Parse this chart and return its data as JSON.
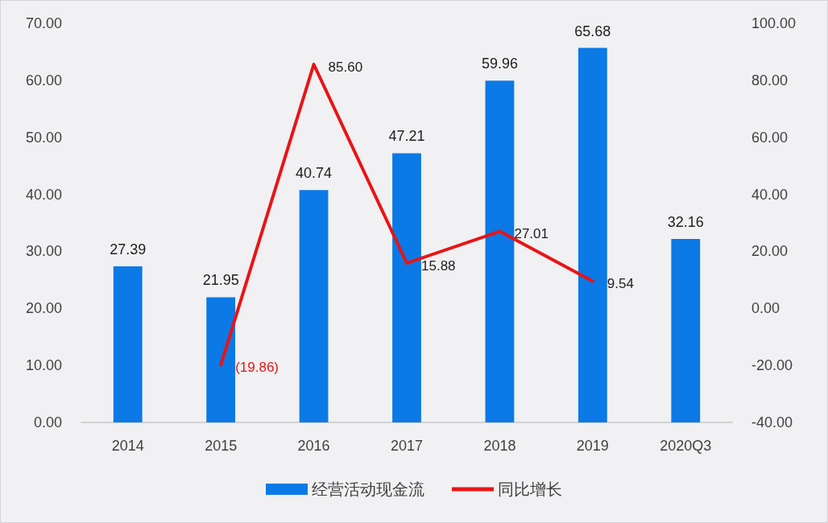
{
  "chart_data": {
    "type": "bar",
    "categories": [
      "2014",
      "2015",
      "2016",
      "2017",
      "2018",
      "2019",
      "2020Q3"
    ],
    "series": [
      {
        "name": "经营活动现金流",
        "color": "#0b79e6",
        "values": [
          27.39,
          21.95,
          40.74,
          47.21,
          59.96,
          65.68,
          32.16
        ],
        "value_labels": [
          "27.39",
          "21.95",
          "40.74",
          "47.21",
          "59.96",
          "65.68",
          "32.16"
        ]
      },
      {
        "name": "同比增长",
        "type": "line",
        "axis": "y2",
        "color": "#e81416",
        "values": [
          null,
          -19.86,
          85.6,
          15.88,
          27.01,
          9.54,
          null
        ],
        "value_labels": [
          null,
          "(19.86)",
          "85.60",
          "15.88",
          "27.01",
          "9.54",
          null
        ]
      }
    ],
    "ylim": [
      0,
      70
    ],
    "yticks": [
      {
        "value": 0,
        "label": "0.00"
      },
      {
        "value": 10,
        "label": "10.00"
      },
      {
        "value": 20,
        "label": "20.00"
      },
      {
        "value": 30,
        "label": "30.00"
      },
      {
        "value": 40,
        "label": "40.00"
      },
      {
        "value": 50,
        "label": "50.00"
      },
      {
        "value": 60,
        "label": "60.00"
      },
      {
        "value": 70,
        "label": "70.00"
      }
    ],
    "y2lim": [
      -40,
      100
    ],
    "y2ticks": [
      {
        "value": -40,
        "label": "-40.00"
      },
      {
        "value": -20,
        "label": "-20.00"
      },
      {
        "value": 0,
        "label": "0.00"
      },
      {
        "value": 20,
        "label": "20.00"
      },
      {
        "value": 40,
        "label": "40.00"
      },
      {
        "value": 60,
        "label": "60.00"
      },
      {
        "value": 80,
        "label": "80.00"
      },
      {
        "value": 100,
        "label": "100.00"
      }
    ],
    "grid": false,
    "legend": "bottom",
    "marker": "none",
    "line_style": "solid"
  }
}
